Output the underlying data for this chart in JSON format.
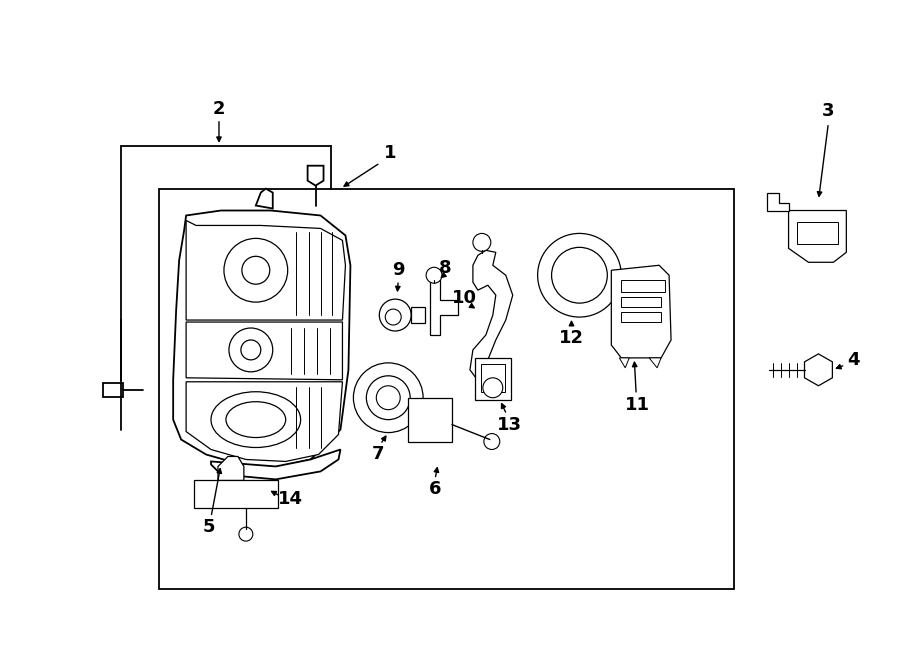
{
  "bg_color": "#ffffff",
  "lc": "#000000",
  "lw": 1.3,
  "fig_w": 9.0,
  "fig_h": 6.61
}
